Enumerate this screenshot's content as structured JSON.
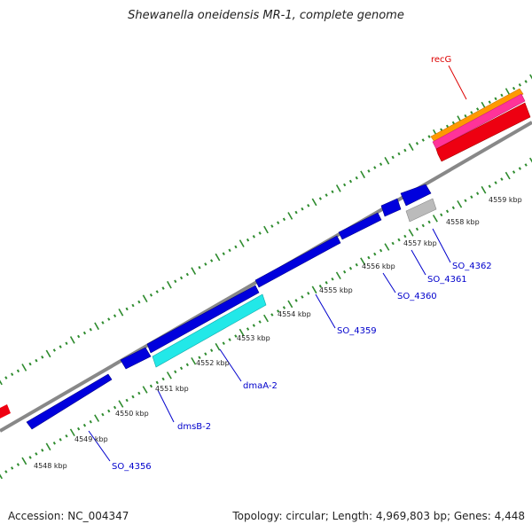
{
  "title": "Shewanella oneidensis MR-1, complete genome",
  "footer": {
    "accession": "Accession: NC_004347",
    "summary": "Topology: circular; Length: 4,969,803 bp; Genes: 4,448"
  },
  "kbp_labels": [
    "4548 kbp",
    "4549 kbp",
    "4550 kbp",
    "4551 kbp",
    "4552 kbp",
    "4553 kbp",
    "4554 kbp",
    "4555 kbp",
    "4556 kbp",
    "4557 kbp",
    "4558 kbp",
    "4559 kbp"
  ],
  "gene_labels": {
    "recG": "recG",
    "dmaA2": "dmaA-2",
    "dmsB2": "dmsB-2",
    "so4356": "SO_4356",
    "so4359": "SO_4359",
    "so4360": "SO_4360",
    "so4361": "SO_4361",
    "so4362": "SO_4362"
  },
  "colors": {
    "backbone": "#888888",
    "ticks": "#2e8b2e",
    "cds": "#0000dd",
    "dmaA": "#22e8e8",
    "recG_band1": "#ff9900",
    "recG_band2": "#ff3399",
    "recG_band3": "#ee0011",
    "small_grey": "#bbbbbb",
    "label_blue": "#0000cc",
    "label_red": "#dd0000"
  }
}
